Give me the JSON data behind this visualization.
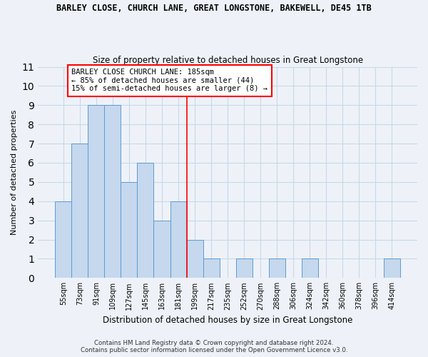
{
  "title": "BARLEY CLOSE, CHURCH LANE, GREAT LONGSTONE, BAKEWELL, DE45 1TB",
  "subtitle": "Size of property relative to detached houses in Great Longstone",
  "xlabel": "Distribution of detached houses by size in Great Longstone",
  "ylabel": "Number of detached properties",
  "categories": [
    "55sqm",
    "73sqm",
    "91sqm",
    "109sqm",
    "127sqm",
    "145sqm",
    "163sqm",
    "181sqm",
    "199sqm",
    "217sqm",
    "235sqm",
    "252sqm",
    "270sqm",
    "288sqm",
    "306sqm",
    "324sqm",
    "342sqm",
    "360sqm",
    "378sqm",
    "396sqm",
    "414sqm"
  ],
  "values": [
    4,
    7,
    9,
    9,
    5,
    6,
    3,
    4,
    2,
    1,
    0,
    1,
    0,
    1,
    0,
    1,
    0,
    0,
    0,
    0,
    1
  ],
  "bar_color": "#c5d8ed",
  "bar_edge_color": "#5b9bd5",
  "red_line_index": 7,
  "annotation_text": "BARLEY CLOSE CHURCH LANE: 185sqm\n← 85% of detached houses are smaller (44)\n15% of semi-detached houses are larger (8) →",
  "annotation_box_color": "white",
  "annotation_box_edge_color": "red",
  "ylim": [
    0,
    11
  ],
  "yticks": [
    0,
    1,
    2,
    3,
    4,
    5,
    6,
    7,
    8,
    9,
    10,
    11
  ],
  "grid_color": "#c8d8e8",
  "background_color": "#eef2f8",
  "footer_line1": "Contains HM Land Registry data © Crown copyright and database right 2024.",
  "footer_line2": "Contains public sector information licensed under the Open Government Licence v3.0."
}
